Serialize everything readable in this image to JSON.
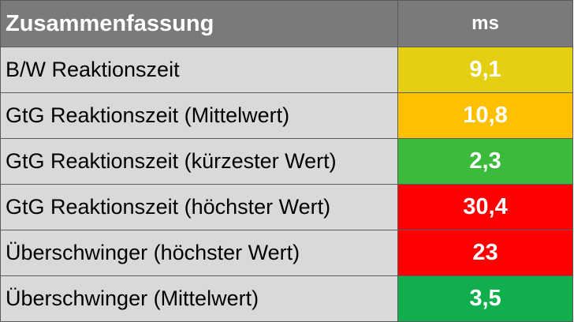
{
  "table": {
    "header": {
      "title": "Zusammenfassung",
      "unit": "ms"
    },
    "rows": [
      {
        "label": "B/W Reaktionszeit",
        "value": "9,1",
        "color": "#e5cf12"
      },
      {
        "label": "GtG Reaktionszeit (Mittelwert)",
        "value": "10,8",
        "color": "#ffc000"
      },
      {
        "label": "GtG Reaktionszeit (kürzester Wert)",
        "value": "2,3",
        "color": "#3bba3b"
      },
      {
        "label": "GtG Reaktionszeit (höchster Wert)",
        "value": "30,4",
        "color": "#ff0000"
      },
      {
        "label": "Überschwinger (höchster Wert)",
        "value": "23",
        "color": "#ff0000"
      },
      {
        "label": "Überschwinger (Mittelwert)",
        "value": "3,5",
        "color": "#10ae4c"
      }
    ]
  }
}
